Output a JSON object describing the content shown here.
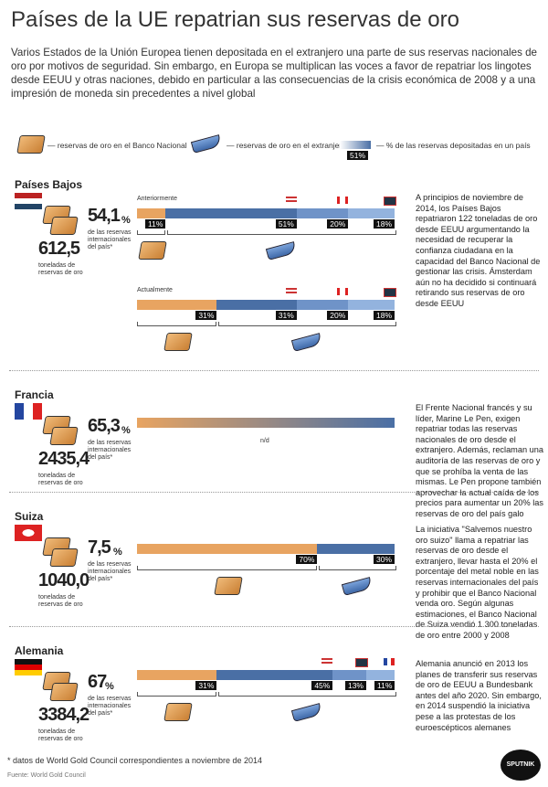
{
  "header": {
    "title": "Países de la UE repatrian sus reservas de oro",
    "intro": "Varios Estados de la Unión Europea tienen depositada en el extranjero una parte de sus reservas nacionales de oro por motivos de seguridad. Sin embargo, en Europa se multiplican las voces a favor de repatriar los lingotes desde EEUU y otras naciones, debido en particular a las consecuencias de la crisis económica de 2008 y a una impresión de moneda sin precedentes a nivel global"
  },
  "legend": {
    "home": "— reservas de oro en el Banco Nacional",
    "abroad": "— reservas de oro en el extranjero",
    "sample_label": "51%",
    "share": "— % de las reservas depositadas en un país"
  },
  "sections": [
    {
      "name": "Países Bajos",
      "share": "54,1",
      "share_unit": "%",
      "share_note": "de las reservas internacionales del país*",
      "tonnes": "612,5",
      "tonnes_note": "toneladas de reservas de oro",
      "bars": [
        {
          "label": "Anteriormente",
          "segments": [
            {
              "value": 11,
              "label": "11%"
            },
            {
              "value": 51,
              "label": "51%"
            },
            {
              "value": 20,
              "label": "20%"
            },
            {
              "value": 18,
              "label": "18%"
            }
          ]
        },
        {
          "label": "Actualmente",
          "segments": [
            {
              "value": 31,
              "label": "31%"
            },
            {
              "value": 31,
              "label": "31%"
            },
            {
              "value": 20,
              "label": "20%"
            },
            {
              "value": 18,
              "label": "18%"
            }
          ]
        }
      ],
      "description": "A principios de noviembre de 2014, los Países Bajos repatriaron 122 toneladas de oro desde EEUU argumentando la necesidad de recuperar la confianza ciudadana en la capacidad del Banco Nacional de gestionar las crisis. Ámsterdam aún no ha decidido si continuará retirando sus reservas de oro desde EEUU"
    },
    {
      "name": "Francia",
      "share": "65,3",
      "share_unit": "%",
      "share_note": "de las reservas internacionales del país*",
      "tonnes": "2435,4",
      "tonnes_note": "toneladas de reservas de oro",
      "bars": [
        {
          "na": "n/d"
        }
      ],
      "description": "El Frente Nacional francés y su líder, Marine Le Pen, exigen repatriar todas las reservas nacionales de oro desde el extranjero. Además, reclaman una auditoría de las reservas de oro y que se prohíba la venta de las mismas. Le Pen propone también aprovechar la actual caída de los precios para aumentar un 20% las reservas de oro del país galo"
    },
    {
      "name": "Suiza",
      "share": "7,5",
      "share_unit": "%",
      "share_note": "de las reservas internacionales del país*",
      "tonnes": "1040,0",
      "tonnes_note": "toneladas de reservas de oro",
      "bars": [
        {
          "segments": [
            {
              "value": 70,
              "label": "70%"
            },
            {
              "value": 30,
              "label": "30%"
            }
          ]
        }
      ],
      "description": "La iniciativa \"Salvemos nuestro oro suizo\" llama a repatriar las reservas de oro desde el extranjero, llevar hasta el 20% el porcentaje del metal noble en las reservas internacionales del país y prohibir que el Banco Nacional venda oro. Según algunas estimaciones, el Banco Nacional de Suiza vendió 1.300 toneladas de oro entre 2000 y 2008"
    },
    {
      "name": "Alemania",
      "share": "67",
      "share_unit": "%",
      "share_note": "de las reservas internacionales del país*",
      "tonnes": "3384,2",
      "tonnes_note": "toneladas de reservas de oro",
      "bars": [
        {
          "segments": [
            {
              "value": 31,
              "label": "31%"
            },
            {
              "value": 45,
              "label": "45%"
            },
            {
              "value": 13,
              "label": "13%"
            },
            {
              "value": 11,
              "label": "11%"
            }
          ]
        }
      ],
      "description": "Alemania anunció en 2013 los planes de transferir sus reservas de oro de EEUU a Bundesbank antes del año 2020. Sin embargo, en 2014 suspendió la iniciativa pese a las protestas de los euroescépticos alemanes"
    }
  ],
  "footer": {
    "note": "* datos de World Gold Council correspondientes a noviembre de 2014",
    "source": "Fuente: World Gold Council",
    "brand": "SPUTNIK"
  }
}
